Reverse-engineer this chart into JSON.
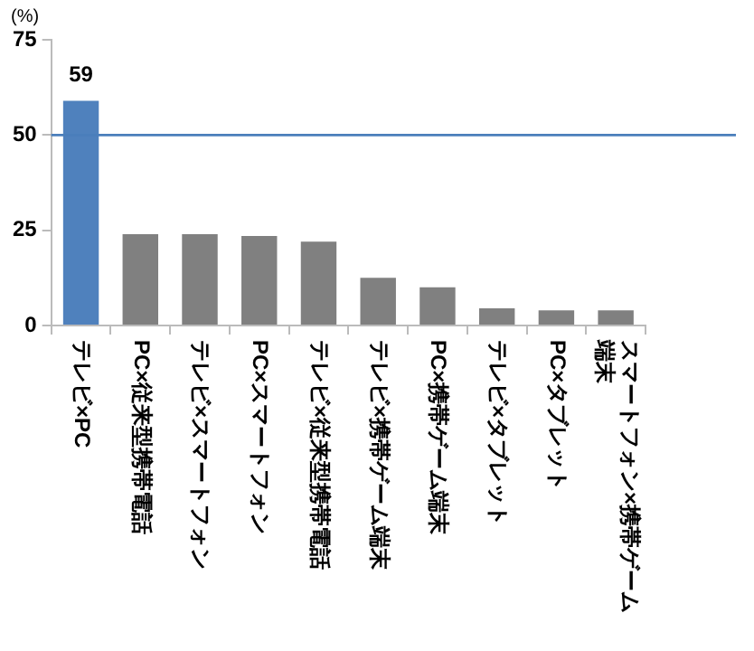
{
  "chart_data": {
    "type": "bar",
    "ylabel": "(%)",
    "categories": [
      "テレビ×PC",
      "PC×従来型携帯電話",
      "テレビ×スマートフォン",
      "PC×スマートフォン",
      "テレビ×従来型携帯電話",
      "テレビ×携帯ゲーム端末",
      "PC×携帯ゲーム端末",
      "テレビ×タブレット",
      "PC×タブレット",
      "スマートフォン×携帯ゲーム端末"
    ],
    "values": [
      59,
      24,
      24,
      23.5,
      22,
      12.5,
      10,
      4.5,
      4,
      4
    ],
    "colors": [
      "#4f81bd",
      "#808080",
      "#808080",
      "#808080",
      "#808080",
      "#808080",
      "#808080",
      "#808080",
      "#808080",
      "#808080"
    ],
    "value_labels": [
      "59",
      null,
      null,
      null,
      null,
      null,
      null,
      null,
      null,
      null
    ],
    "ylim": [
      0,
      75
    ],
    "yticks": [
      0,
      25,
      50,
      75
    ],
    "ref_lines": [
      {
        "axis": "y",
        "value": 50,
        "color": "#4a7ebb"
      }
    ],
    "grid": false,
    "legend": false
  }
}
